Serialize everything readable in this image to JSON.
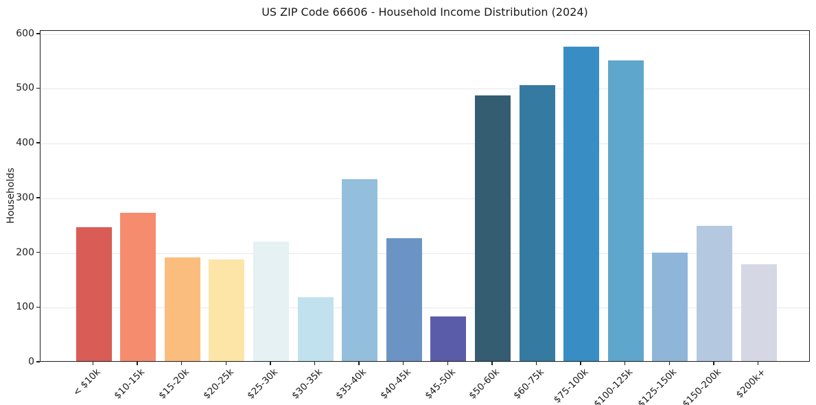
{
  "chart_data": {
    "type": "bar",
    "title": "US ZIP Code 66606 - Household Income Distribution (2024)",
    "xlabel": "",
    "ylabel": "Households",
    "categories": [
      "< $10k",
      "$10-15k",
      "$15-20k",
      "$20-25k",
      "$25-30k",
      "$30-35k",
      "$35-40k",
      "$40-45k",
      "$45-50k",
      "$50-60k",
      "$60-75k",
      "$75-100k",
      "$100-125k",
      "$125-150k",
      "$150-200k",
      "$200k+"
    ],
    "values": [
      245,
      271,
      190,
      186,
      218,
      117,
      332,
      224,
      82,
      486,
      505,
      575,
      549,
      198,
      247,
      177
    ],
    "bar_colors": [
      "#d95c56",
      "#f68c6e",
      "#fbbd7d",
      "#fde5a7",
      "#e5f1f2",
      "#c1e1ee",
      "#93bfdd",
      "#6b94c5",
      "#5a5ca9",
      "#355d72",
      "#357ba1",
      "#378dc4",
      "#5fa6cc",
      "#8fb6d9",
      "#b4c9e0",
      "#d5d7e4"
    ],
    "yticks": [
      0,
      100,
      200,
      300,
      400,
      500,
      600
    ],
    "ylim": [
      0,
      600
    ],
    "grid": "horizontal",
    "legend_position": "none",
    "background_color": "#ffffff",
    "axis_color": "#1a1a1a",
    "grid_color": "#e8e8e8"
  }
}
